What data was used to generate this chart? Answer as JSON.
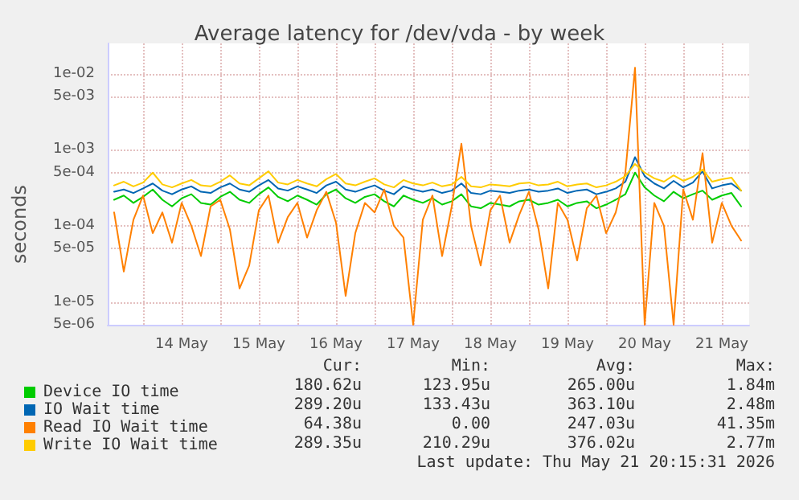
{
  "chart_data": {
    "type": "line",
    "title": "Average latency for /dev/vda - by week",
    "ylabel": "seconds",
    "log": "y",
    "grid": true,
    "legend": "bottom left",
    "marker": "none",
    "line_style": "solid",
    "xlim": [
      "2026-05-13T13:00",
      "2026-05-21T20:30"
    ],
    "xticks": [
      {
        "value": "2026-05-14T00:00",
        "label": null
      },
      {
        "value": "2026-05-14T12:00",
        "label": "14 May"
      },
      {
        "value": "2026-05-15T00:00",
        "label": null
      },
      {
        "value": "2026-05-15T12:00",
        "label": "15 May"
      },
      {
        "value": "2026-05-16T00:00",
        "label": null
      },
      {
        "value": "2026-05-16T12:00",
        "label": "16 May"
      },
      {
        "value": "2026-05-17T00:00",
        "label": null
      },
      {
        "value": "2026-05-17T12:00",
        "label": "17 May"
      },
      {
        "value": "2026-05-18T00:00",
        "label": null
      },
      {
        "value": "2026-05-18T12:00",
        "label": "18 May"
      },
      {
        "value": "2026-05-19T00:00",
        "label": null
      },
      {
        "value": "2026-05-19T12:00",
        "label": "19 May"
      },
      {
        "value": "2026-05-20T00:00",
        "label": null
      },
      {
        "value": "2026-05-20T12:00",
        "label": "20 May"
      },
      {
        "value": "2026-05-21T00:00",
        "label": null
      },
      {
        "value": "2026-05-21T12:00",
        "label": "21 May"
      }
    ],
    "ylim": [
      5e-06,
      0.025
    ],
    "yticks": [
      {
        "value": 5e-06,
        "label": "5e-06"
      },
      {
        "value": 1e-05,
        "label": "1e-05"
      },
      {
        "value": 5e-05,
        "label": "5e-05"
      },
      {
        "value": 0.0001,
        "label": "1e-04"
      },
      {
        "value": 0.0005,
        "label": "5e-04"
      },
      {
        "value": 0.001,
        "label": "1e-03"
      },
      {
        "value": 0.005,
        "label": "5e-03"
      },
      {
        "value": 0.01,
        "label": "1e-02"
      }
    ],
    "x": [
      "2026-05-13T15:00",
      "2026-05-13T18:00",
      "2026-05-13T21:00",
      "2026-05-14T00:00",
      "2026-05-14T03:00",
      "2026-05-14T06:00",
      "2026-05-14T09:00",
      "2026-05-14T12:00",
      "2026-05-14T15:00",
      "2026-05-14T18:00",
      "2026-05-14T21:00",
      "2026-05-15T00:00",
      "2026-05-15T03:00",
      "2026-05-15T06:00",
      "2026-05-15T09:00",
      "2026-05-15T12:00",
      "2026-05-15T15:00",
      "2026-05-15T18:00",
      "2026-05-15T21:00",
      "2026-05-16T00:00",
      "2026-05-16T03:00",
      "2026-05-16T06:00",
      "2026-05-16T09:00",
      "2026-05-16T12:00",
      "2026-05-16T15:00",
      "2026-05-16T18:00",
      "2026-05-16T21:00",
      "2026-05-17T00:00",
      "2026-05-17T03:00",
      "2026-05-17T06:00",
      "2026-05-17T09:00",
      "2026-05-17T12:00",
      "2026-05-17T15:00",
      "2026-05-17T18:00",
      "2026-05-17T21:00",
      "2026-05-18T00:00",
      "2026-05-18T03:00",
      "2026-05-18T06:00",
      "2026-05-18T09:00",
      "2026-05-18T12:00",
      "2026-05-18T15:00",
      "2026-05-18T18:00",
      "2026-05-18T21:00",
      "2026-05-19T00:00",
      "2026-05-19T03:00",
      "2026-05-19T06:00",
      "2026-05-19T09:00",
      "2026-05-19T12:00",
      "2026-05-19T15:00",
      "2026-05-19T18:00",
      "2026-05-19T21:00",
      "2026-05-20T00:00",
      "2026-05-20T03:00",
      "2026-05-20T06:00",
      "2026-05-20T09:00",
      "2026-05-20T12:00",
      "2026-05-20T15:00",
      "2026-05-20T18:00",
      "2026-05-20T21:00",
      "2026-05-21T00:00",
      "2026-05-21T03:00",
      "2026-05-21T06:00",
      "2026-05-21T09:00",
      "2026-05-21T12:00",
      "2026-05-21T15:00",
      "2026-05-21T18:00"
    ],
    "series": [
      {
        "name": "Device IO time",
        "color": "#00cc00",
        "values": [
          0.00022,
          0.00025,
          0.0002,
          0.00024,
          0.0003,
          0.00022,
          0.00018,
          0.00023,
          0.00026,
          0.0002,
          0.00019,
          0.00024,
          0.00028,
          0.00022,
          0.0002,
          0.00026,
          0.00032,
          0.00024,
          0.00021,
          0.00025,
          0.00022,
          0.00019,
          0.00026,
          0.0003,
          0.00023,
          0.0002,
          0.00024,
          0.00026,
          0.00021,
          0.00018,
          0.00025,
          0.00022,
          0.0002,
          0.00023,
          0.00019,
          0.00021,
          0.00026,
          0.00018,
          0.00017,
          0.0002,
          0.00019,
          0.00018,
          0.00021,
          0.00022,
          0.00019,
          0.0002,
          0.00022,
          0.00018,
          0.0002,
          0.00021,
          0.00017,
          0.00019,
          0.00022,
          0.00026,
          0.0005,
          0.00032,
          0.00025,
          0.00021,
          0.00028,
          0.00023,
          0.00026,
          0.00029,
          0.00022,
          0.00025,
          0.00027,
          0.00018
        ]
      },
      {
        "name": "IO Wait time",
        "color": "#0066b3",
        "values": [
          0.00028,
          0.0003,
          0.00027,
          0.00031,
          0.00036,
          0.00029,
          0.00026,
          0.0003,
          0.00033,
          0.00028,
          0.00027,
          0.00032,
          0.00036,
          0.0003,
          0.00028,
          0.00034,
          0.0004,
          0.00031,
          0.00029,
          0.00033,
          0.0003,
          0.00027,
          0.00034,
          0.00038,
          0.0003,
          0.00028,
          0.00031,
          0.00034,
          0.00029,
          0.00026,
          0.00033,
          0.0003,
          0.00028,
          0.0003,
          0.00027,
          0.00029,
          0.00036,
          0.00027,
          0.00026,
          0.00029,
          0.00028,
          0.00027,
          0.00029,
          0.0003,
          0.00028,
          0.00029,
          0.00031,
          0.00027,
          0.00029,
          0.0003,
          0.00026,
          0.00028,
          0.00031,
          0.00038,
          0.0008,
          0.00045,
          0.00036,
          0.00031,
          0.00039,
          0.00032,
          0.00037,
          0.00052,
          0.00031,
          0.00034,
          0.00036,
          0.00029
        ]
      },
      {
        "name": "Read IO Wait time",
        "color": "#ff8000",
        "values": [
          0.00015,
          2.5e-05,
          0.00012,
          0.00025,
          8e-05,
          0.00015,
          6e-05,
          0.0002,
          0.0001,
          4e-05,
          0.00018,
          0.00022,
          9e-05,
          1.5e-05,
          3e-05,
          0.00016,
          0.00025,
          6e-05,
          0.00013,
          0.0002,
          7e-05,
          0.00016,
          0.00028,
          0.00011,
          1.2e-05,
          8e-05,
          0.0002,
          0.00015,
          0.0003,
          0.0001,
          7e-05,
          5e-06,
          0.00012,
          0.00025,
          4e-05,
          0.00018,
          0.0012,
          0.0001,
          3e-05,
          0.00016,
          0.00025,
          6e-05,
          0.00014,
          0.00028,
          9e-05,
          1.5e-05,
          0.0002,
          0.00012,
          3.5e-05,
          0.00017,
          0.00025,
          8e-05,
          0.00015,
          0.0005,
          0.012,
          5e-06,
          0.0002,
          0.0001,
          5e-06,
          0.0003,
          0.00012,
          0.0009,
          6e-05,
          0.0002,
          0.0001,
          6.4e-05
        ]
      },
      {
        "name": "Write IO Wait time",
        "color": "#ffcc00",
        "values": [
          0.00034,
          0.00038,
          0.00033,
          0.00037,
          0.0005,
          0.00035,
          0.00032,
          0.00036,
          0.0004,
          0.00034,
          0.00033,
          0.00038,
          0.00046,
          0.00036,
          0.00034,
          0.00042,
          0.00052,
          0.00037,
          0.00035,
          0.0004,
          0.00036,
          0.00033,
          0.00041,
          0.00048,
          0.00036,
          0.00034,
          0.00038,
          0.00042,
          0.00035,
          0.00032,
          0.0004,
          0.00036,
          0.00034,
          0.00037,
          0.00033,
          0.00035,
          0.00044,
          0.00033,
          0.00032,
          0.00035,
          0.00034,
          0.00033,
          0.00036,
          0.00037,
          0.00034,
          0.00035,
          0.00038,
          0.00033,
          0.00035,
          0.00036,
          0.00032,
          0.00034,
          0.00038,
          0.00045,
          0.00065,
          0.0005,
          0.00042,
          0.00038,
          0.00046,
          0.00039,
          0.00044,
          0.00055,
          0.00038,
          0.00041,
          0.00043,
          0.00029
        ]
      }
    ],
    "annotations": [
      "Cur:",
      "Min:",
      "Avg:",
      "Max:",
      "180.62u",
      "123.95u",
      "265.00u",
      "1.84m",
      "289.20u",
      "133.43u",
      "363.10u",
      "2.48m",
      "64.38u",
      "0.00",
      "247.03u",
      "41.35m",
      "289.35u",
      "210.29u",
      "376.02u",
      "2.77m",
      "Last update: Thu May 21 20:15:31 2026"
    ]
  }
}
